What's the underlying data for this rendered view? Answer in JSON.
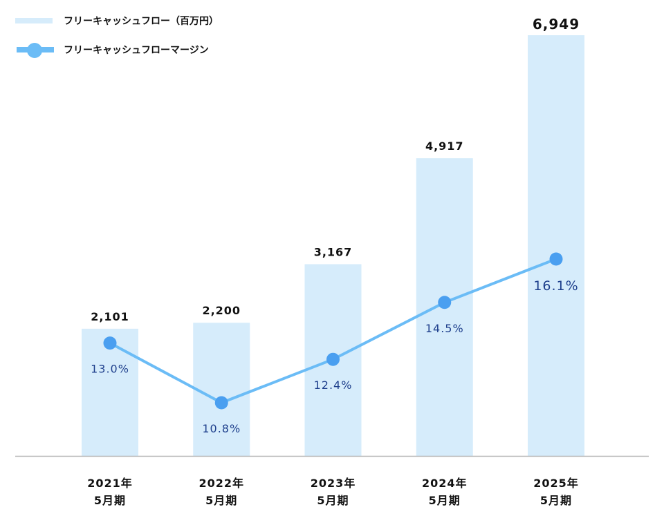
{
  "chart_data": {
    "type": "bar+line",
    "categories": [
      "2021年\n5月期",
      "2022年\n5月期",
      "2023年\n5月期",
      "2024年\n5月期",
      "2025年\n5月期"
    ],
    "category_lines": [
      [
        "2021年",
        "5月期"
      ],
      [
        "2022年",
        "5月期"
      ],
      [
        "2023年",
        "5月期"
      ],
      [
        "2024年",
        "5月期"
      ],
      [
        "2025年",
        "5月期"
      ]
    ],
    "series": [
      {
        "name": "フリーキャッシュフロー（百万円）",
        "type": "bar",
        "values": [
          2101,
          2200,
          3167,
          4917,
          6949
        ],
        "labels": [
          "2,101",
          "2,200",
          "3,167",
          "4,917",
          "6,949"
        ],
        "color": "#d6ecfb"
      },
      {
        "name": "フリーキャッシュフローマージン",
        "type": "line",
        "values": [
          13.0,
          10.8,
          12.4,
          14.5,
          16.1
        ],
        "labels": [
          "13.0%",
          "10.8%",
          "12.4%",
          "14.5%",
          "16.1%"
        ],
        "color": "#6bbcf6",
        "marker_color": "#4a9ff0",
        "label_color": "#1e3f8c"
      }
    ],
    "legend_position": "top-left",
    "grid": false
  }
}
